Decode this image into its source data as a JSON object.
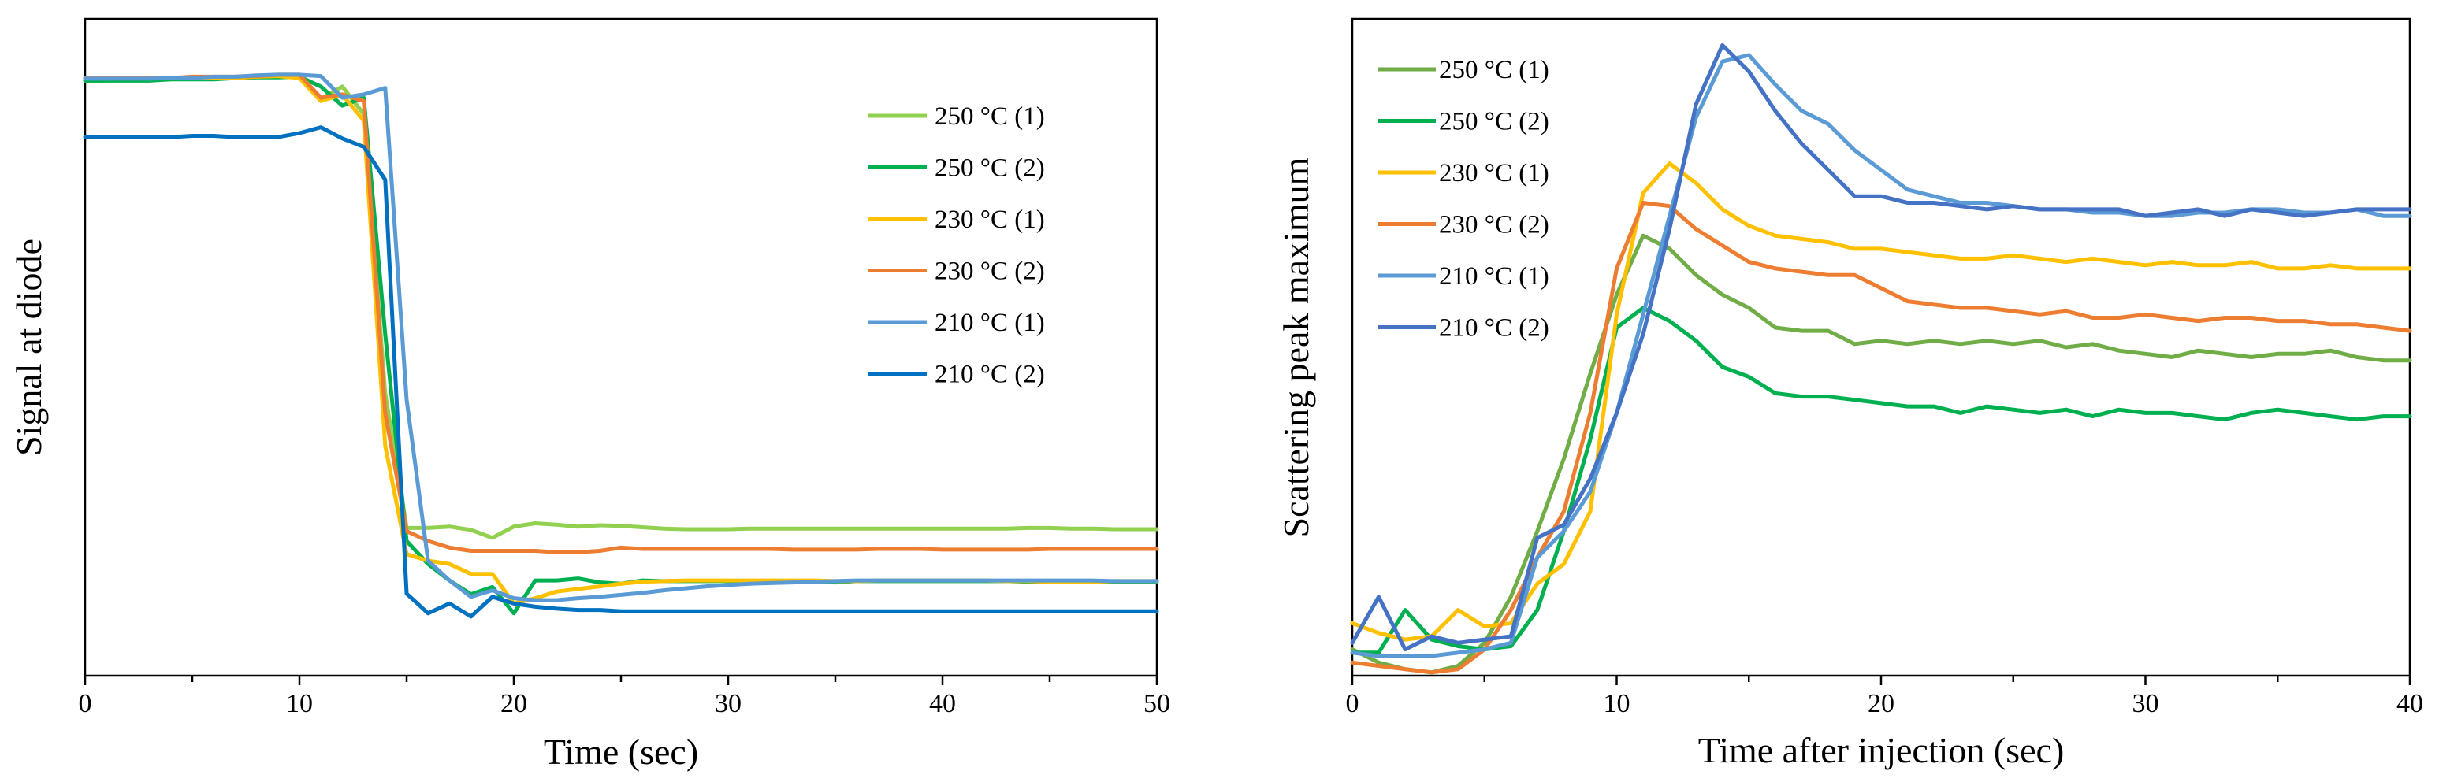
{
  "chart_data": [
    {
      "type": "line",
      "title": "",
      "xlabel": "Time (sec)",
      "ylabel": "Signal at diode",
      "xlim": [
        0,
        50
      ],
      "ylim": [
        0,
        100
      ],
      "xticks": [
        0,
        10,
        20,
        30,
        40,
        50
      ],
      "grid": false,
      "legend_position": "top-right",
      "x": [
        0,
        1,
        2,
        3,
        4,
        5,
        6,
        7,
        8,
        9,
        10,
        11,
        12,
        13,
        14,
        15,
        16,
        17,
        18,
        19,
        20,
        21,
        22,
        23,
        24,
        25,
        26,
        27,
        28,
        29,
        30,
        31,
        32,
        33,
        34,
        35,
        36,
        37,
        38,
        39,
        40,
        41,
        42,
        43,
        44,
        45,
        46,
        47,
        48,
        49,
        50
      ],
      "series": [
        {
          "name": "250 °C (1)",
          "color": "#92d050",
          "values": [
            90.6,
            90.6,
            90.8,
            90.8,
            90.8,
            91.1,
            91.1,
            91.1,
            91.2,
            91.3,
            91.2,
            87.8,
            89.7,
            85.5,
            43.0,
            22.5,
            22.5,
            22.7,
            22.2,
            21.0,
            22.7,
            23.2,
            23.0,
            22.7,
            22.9,
            22.8,
            22.6,
            22.4,
            22.3,
            22.3,
            22.3,
            22.4,
            22.4,
            22.4,
            22.4,
            22.4,
            22.4,
            22.4,
            22.4,
            22.4,
            22.4,
            22.4,
            22.4,
            22.4,
            22.5,
            22.5,
            22.4,
            22.4,
            22.3,
            22.3,
            22.3
          ]
        },
        {
          "name": "250 °C (2)",
          "color": "#00b050",
          "values": [
            90.6,
            90.6,
            90.6,
            90.6,
            90.8,
            90.8,
            90.8,
            91.0,
            91.1,
            91.1,
            91.2,
            89.7,
            86.8,
            88.0,
            52.0,
            20.5,
            17.0,
            14.5,
            12.4,
            13.5,
            9.5,
            14.5,
            14.5,
            14.8,
            14.2,
            14.0,
            14.5,
            14.4,
            14.4,
            14.4,
            14.4,
            14.4,
            14.4,
            14.4,
            14.3,
            14.2,
            14.4,
            14.4,
            14.4,
            14.4,
            14.4,
            14.4,
            14.4,
            14.4,
            14.3,
            14.3,
            14.3,
            14.3,
            14.3,
            14.3,
            14.3
          ]
        },
        {
          "name": "230 °C (1)",
          "color": "#ffc000",
          "values": [
            91.0,
            91.0,
            91.0,
            91.0,
            91.0,
            91.0,
            91.0,
            91.0,
            91.2,
            91.3,
            91.0,
            87.5,
            88.5,
            84.5,
            35.0,
            18.5,
            17.5,
            17.0,
            15.5,
            15.5,
            11.0,
            11.8,
            12.8,
            13.2,
            13.6,
            14.0,
            14.3,
            14.4,
            14.5,
            14.5,
            14.5,
            14.5,
            14.5,
            14.5,
            14.5,
            14.4,
            14.4,
            14.5,
            14.5,
            14.5,
            14.5,
            14.5,
            14.5,
            14.4,
            14.4,
            14.3,
            14.3,
            14.3,
            14.4,
            14.4,
            14.4
          ]
        },
        {
          "name": "230 °C (2)",
          "color": "#ed7d31",
          "values": [
            91.0,
            91.0,
            91.0,
            91.0,
            91.0,
            91.2,
            91.2,
            91.2,
            91.3,
            91.5,
            91.5,
            88.0,
            88.5,
            87.5,
            40.0,
            22.0,
            20.5,
            19.5,
            19.0,
            19.0,
            19.0,
            19.0,
            18.8,
            18.8,
            19.0,
            19.5,
            19.3,
            19.3,
            19.3,
            19.3,
            19.3,
            19.3,
            19.3,
            19.2,
            19.2,
            19.2,
            19.2,
            19.3,
            19.3,
            19.3,
            19.2,
            19.2,
            19.2,
            19.2,
            19.2,
            19.3,
            19.3,
            19.3,
            19.3,
            19.3,
            19.3
          ]
        },
        {
          "name": "210 °C (1)",
          "color": "#5b9bd5",
          "values": [
            90.9,
            90.9,
            90.9,
            90.9,
            91.0,
            91.0,
            91.2,
            91.2,
            91.4,
            91.5,
            91.5,
            91.3,
            88.0,
            88.5,
            89.5,
            42.0,
            17.5,
            14.5,
            12.0,
            13.0,
            11.8,
            11.5,
            11.5,
            11.8,
            12.0,
            12.3,
            12.6,
            13.0,
            13.3,
            13.6,
            13.8,
            14.0,
            14.1,
            14.2,
            14.3,
            14.4,
            14.5,
            14.5,
            14.5,
            14.5,
            14.5,
            14.5,
            14.5,
            14.5,
            14.5,
            14.5,
            14.5,
            14.5,
            14.4,
            14.4,
            14.4
          ]
        },
        {
          "name": "210 °C (2)",
          "color": "#0070c0",
          "values": [
            82.0,
            82.0,
            82.0,
            82.0,
            82.0,
            82.2,
            82.2,
            82.0,
            82.0,
            82.0,
            82.6,
            83.5,
            81.8,
            80.5,
            75.5,
            12.5,
            9.5,
            11.0,
            9.0,
            12.0,
            11.0,
            10.5,
            10.2,
            10.0,
            10.0,
            9.8,
            9.8,
            9.8,
            9.8,
            9.8,
            9.8,
            9.8,
            9.8,
            9.8,
            9.8,
            9.8,
            9.8,
            9.8,
            9.8,
            9.8,
            9.8,
            9.8,
            9.8,
            9.8,
            9.8,
            9.8,
            9.8,
            9.8,
            9.8,
            9.8,
            9.8
          ]
        }
      ]
    },
    {
      "type": "line",
      "title": "",
      "xlabel": "Time after injection (sec)",
      "ylabel": "Scattering peak maximum",
      "xlim": [
        0,
        40
      ],
      "ylim": [
        0,
        100
      ],
      "xticks": [
        0,
        10,
        20,
        30,
        40
      ],
      "grid": false,
      "legend_position": "top-left",
      "x": [
        0,
        1,
        2,
        3,
        4,
        5,
        6,
        7,
        8,
        9,
        10,
        11,
        12,
        13,
        14,
        15,
        16,
        17,
        18,
        19,
        20,
        21,
        22,
        23,
        24,
        25,
        26,
        27,
        28,
        29,
        30,
        31,
        32,
        33,
        34,
        35,
        36,
        37,
        38,
        39,
        40
      ],
      "series": [
        {
          "name": "250 °C (1)",
          "color": "#70ad47",
          "values": [
            4.0,
            2.0,
            1.0,
            0.5,
            1.5,
            5.0,
            12.0,
            22.0,
            33.0,
            46.0,
            58.0,
            67.0,
            65.0,
            61.0,
            58.0,
            56.0,
            53.0,
            52.5,
            52.5,
            50.5,
            51.0,
            50.5,
            51.0,
            50.5,
            51.0,
            50.5,
            51.0,
            50.0,
            50.5,
            49.5,
            49.0,
            48.5,
            49.5,
            49.0,
            48.5,
            49.0,
            49.0,
            49.5,
            48.5,
            48.0,
            48.0
          ]
        },
        {
          "name": "250 °C (2)",
          "color": "#00b050",
          "values": [
            3.5,
            3.5,
            10.0,
            5.5,
            4.5,
            4.0,
            4.5,
            10.0,
            22.0,
            36.0,
            53.0,
            56.0,
            54.0,
            51.0,
            47.0,
            45.5,
            43.0,
            42.5,
            42.5,
            42.0,
            41.5,
            41.0,
            41.0,
            40.0,
            41.0,
            40.5,
            40.0,
            40.5,
            39.5,
            40.5,
            40.0,
            40.0,
            39.5,
            39.0,
            40.0,
            40.5,
            40.0,
            39.5,
            39.0,
            39.5,
            39.5
          ]
        },
        {
          "name": "230 °C (1)",
          "color": "#ffc000",
          "values": [
            8.0,
            6.5,
            5.5,
            6.0,
            10.0,
            7.5,
            8.0,
            14.0,
            17.0,
            25.0,
            55.0,
            73.5,
            78.0,
            75.0,
            71.0,
            68.5,
            67.0,
            66.5,
            66.0,
            65.0,
            65.0,
            64.5,
            64.0,
            63.5,
            63.5,
            64.0,
            63.5,
            63.0,
            63.5,
            63.0,
            62.5,
            63.0,
            62.5,
            62.5,
            63.0,
            62.0,
            62.0,
            62.5,
            62.0,
            62.0,
            62.0
          ]
        },
        {
          "name": "230 °C (2)",
          "color": "#ed7d31",
          "values": [
            2.0,
            1.5,
            1.0,
            0.5,
            1.0,
            4.0,
            10.0,
            18.0,
            25.0,
            40.0,
            62.0,
            72.0,
            71.5,
            68.0,
            65.5,
            63.0,
            62.0,
            61.5,
            61.0,
            61.0,
            59.0,
            57.0,
            56.5,
            56.0,
            56.0,
            55.5,
            55.0,
            55.5,
            54.5,
            54.5,
            55.0,
            54.5,
            54.0,
            54.5,
            54.5,
            54.0,
            54.0,
            53.5,
            53.5,
            53.0,
            52.5
          ]
        },
        {
          "name": "210 °C (1)",
          "color": "#5b9bd5",
          "values": [
            3.5,
            3.0,
            3.0,
            3.0,
            3.5,
            4.0,
            5.0,
            18.0,
            22.0,
            28.0,
            40.0,
            55.0,
            70.0,
            85.0,
            93.5,
            94.5,
            90.0,
            86.0,
            84.0,
            80.0,
            77.0,
            74.0,
            73.0,
            72.0,
            72.0,
            71.5,
            71.0,
            71.0,
            70.5,
            70.5,
            70.0,
            70.0,
            70.5,
            70.5,
            71.0,
            71.0,
            70.5,
            70.5,
            71.0,
            70.0,
            70.0
          ]
        },
        {
          "name": "210 °C (2)",
          "color": "#4472c4",
          "values": [
            5.0,
            12.0,
            4.0,
            6.0,
            5.0,
            5.5,
            6.0,
            21.0,
            23.0,
            30.0,
            40.0,
            52.0,
            68.0,
            87.0,
            96.0,
            92.0,
            86.0,
            81.0,
            77.0,
            73.0,
            73.0,
            72.0,
            72.0,
            71.5,
            71.0,
            71.5,
            71.0,
            71.0,
            71.0,
            71.0,
            70.0,
            70.5,
            71.0,
            70.0,
            71.0,
            70.5,
            70.0,
            70.5,
            71.0,
            71.0,
            71.0
          ]
        }
      ]
    }
  ]
}
